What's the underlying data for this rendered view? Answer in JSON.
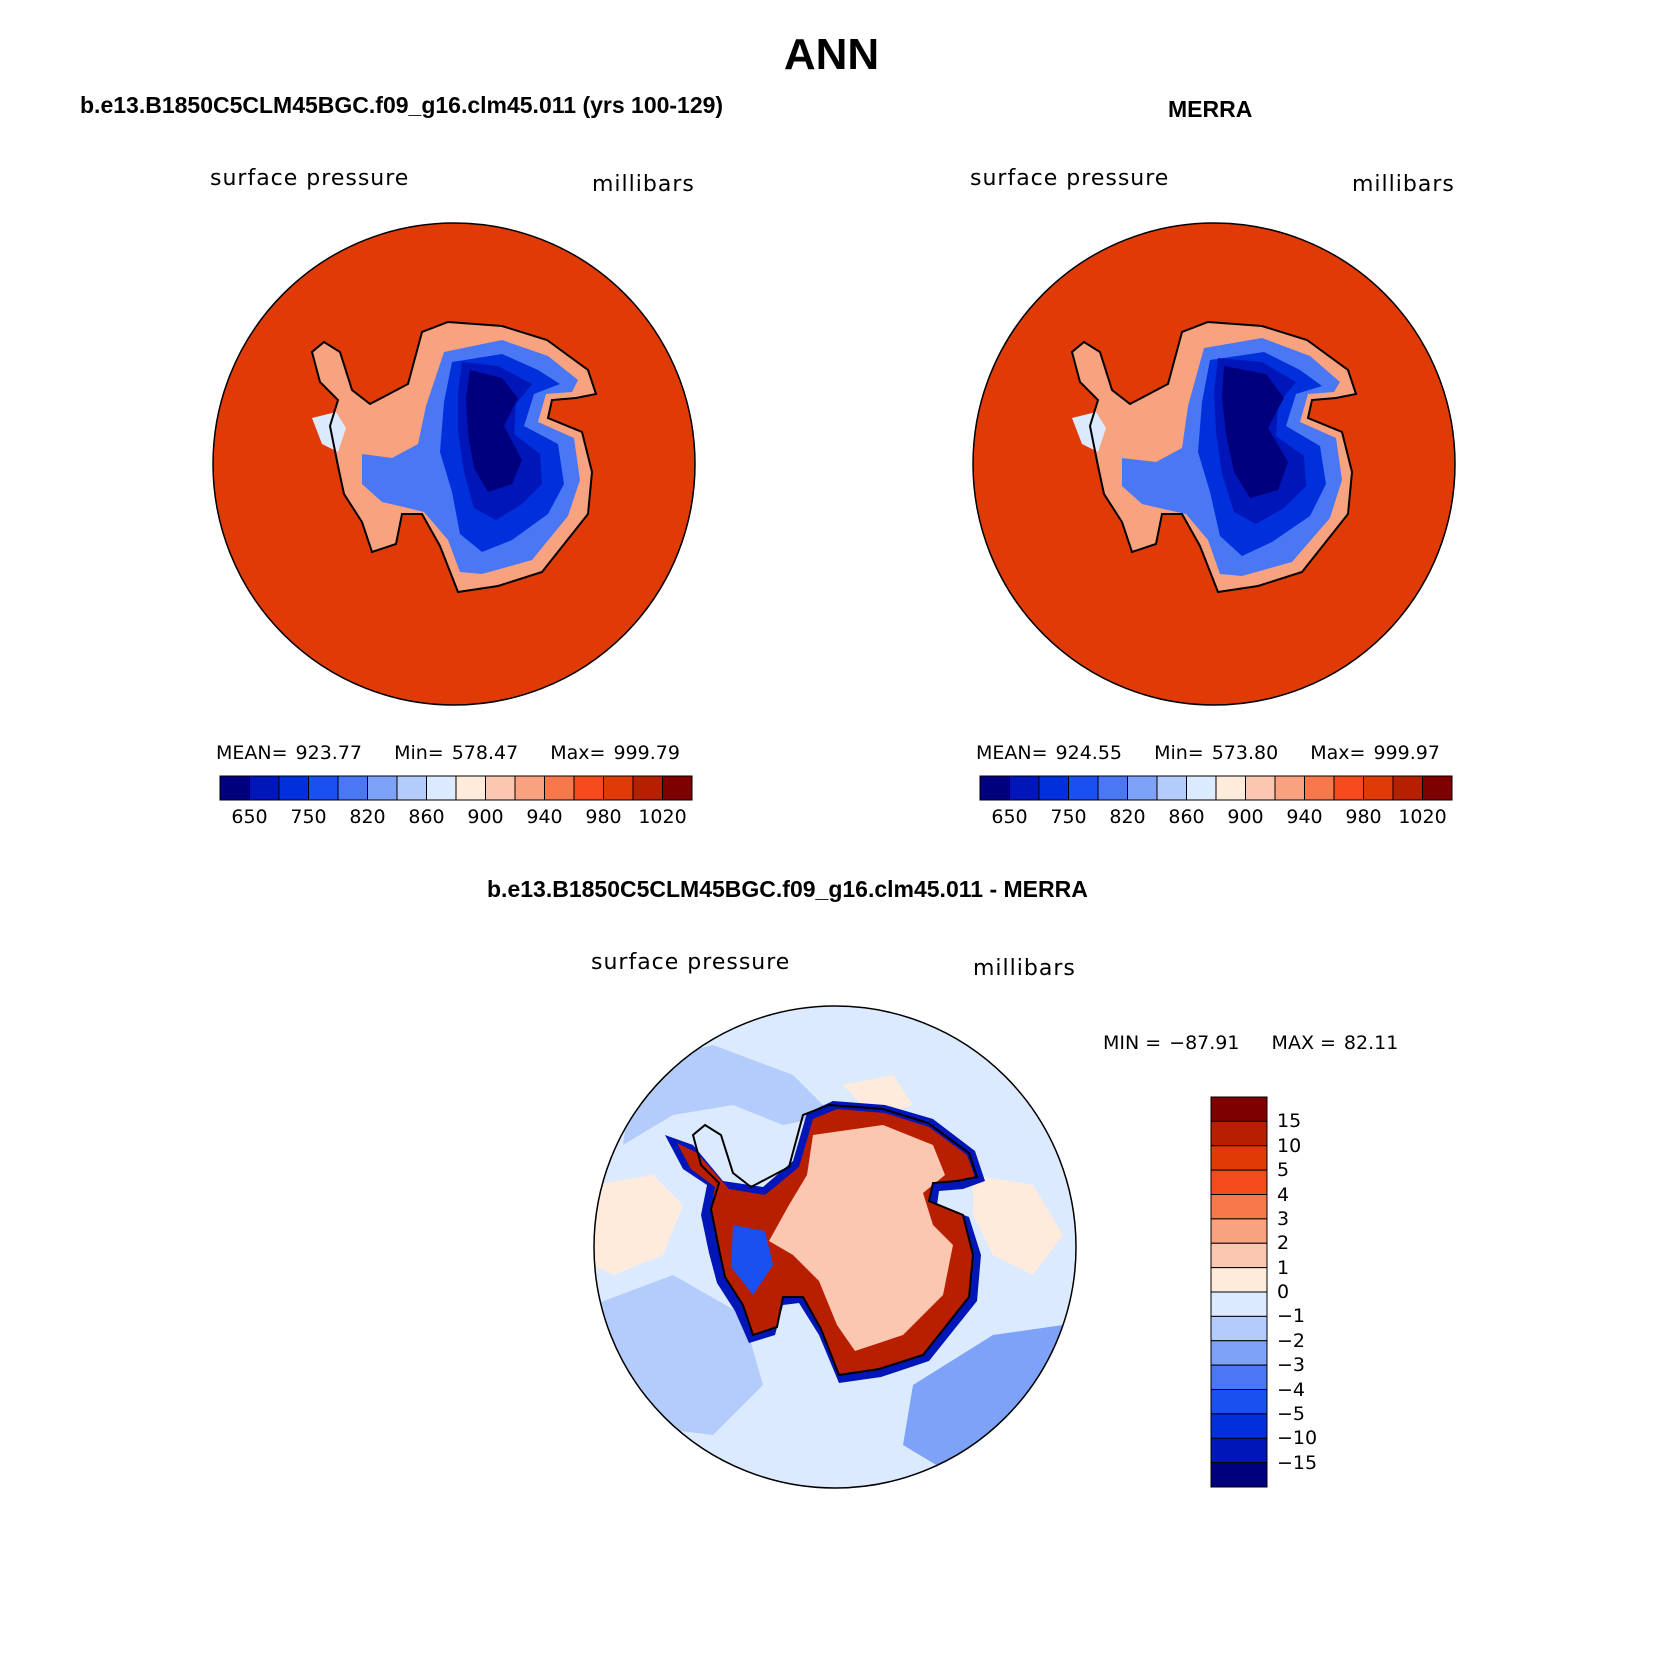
{
  "figure": {
    "title": "ANN",
    "diff_title": "b.e13.B1850C5CLM45BGC.f09_g16.clm45.011 - MERRA"
  },
  "colors": {
    "pressure_scale": [
      "#00007f",
      "#0016b8",
      "#0030dc",
      "#1a4ff0",
      "#4a78f5",
      "#7da2f7",
      "#b4ccfb",
      "#dceaff",
      "#ffebdc",
      "#fcc7b0",
      "#f9a27f",
      "#f7784b",
      "#f44a1c",
      "#e03a06",
      "#b81f00",
      "#7f0000"
    ],
    "diff_scale": [
      "#00007f",
      "#0016b8",
      "#0030dc",
      "#1a4ff0",
      "#4a78f5",
      "#7da2f7",
      "#b4ccfb",
      "#dceaff",
      "#ffebdc",
      "#fcc7b0",
      "#f9a27f",
      "#f7784b",
      "#f44a1c",
      "#e03a06",
      "#b81f00",
      "#7f0000"
    ],
    "ocean_fill": "#e03a06",
    "diff_ocean": "#dceaff"
  },
  "panels": [
    {
      "title": "b.e13.B1850C5CLM45BGC.f09_g16.clm45.011 (yrs 100-129)",
      "variable": "surface pressure",
      "units": "millibars",
      "stats": {
        "mean_label": "MEAN=",
        "mean": "923.77",
        "min_label": "Min=",
        "min": "578.47",
        "max_label": "Max=",
        "max": "999.79"
      }
    },
    {
      "title": "MERRA",
      "variable": "surface pressure",
      "units": "millibars",
      "stats": {
        "mean_label": "MEAN=",
        "mean": "924.55",
        "min_label": "Min=",
        "min": "573.80",
        "max_label": "Max=",
        "max": "999.97"
      }
    },
    {
      "title": "",
      "variable": "surface pressure",
      "units": "millibars",
      "stats": {
        "min_label": "MIN =",
        "min": "−87.91",
        "max_label": "MAX =",
        "max": "82.11"
      }
    }
  ],
  "chart_data": [
    {
      "type": "heatmap",
      "title": "b.e13.B1850C5CLM45BGC.f09_g16.clm45.011 (yrs 100-129)",
      "variable": "surface pressure",
      "units": "millibars",
      "projection": "south polar stereographic",
      "colorbar": {
        "orientation": "horizontal",
        "tick_labels": [
          "650",
          "750",
          "820",
          "860",
          "900",
          "940",
          "980",
          "1020"
        ]
      },
      "stats": {
        "mean": 923.77,
        "min": 578.47,
        "max": 999.79
      }
    },
    {
      "type": "heatmap",
      "title": "MERRA",
      "variable": "surface pressure",
      "units": "millibars",
      "projection": "south polar stereographic",
      "colorbar": {
        "orientation": "horizontal",
        "tick_labels": [
          "650",
          "750",
          "820",
          "860",
          "900",
          "940",
          "980",
          "1020"
        ]
      },
      "stats": {
        "mean": 924.55,
        "min": 573.8,
        "max": 999.97
      }
    },
    {
      "type": "heatmap",
      "title": "b.e13.B1850C5CLM45BGC.f09_g16.clm45.011 - MERRA",
      "variable": "surface pressure",
      "units": "millibars",
      "projection": "south polar stereographic",
      "colorbar": {
        "orientation": "vertical",
        "tick_labels": [
          "15",
          "10",
          "5",
          "4",
          "3",
          "2",
          "1",
          "0",
          "−1",
          "−2",
          "−3",
          "−4",
          "−5",
          "−10",
          "−15"
        ]
      },
      "stats": {
        "min": -87.91,
        "max": 82.11
      }
    }
  ]
}
